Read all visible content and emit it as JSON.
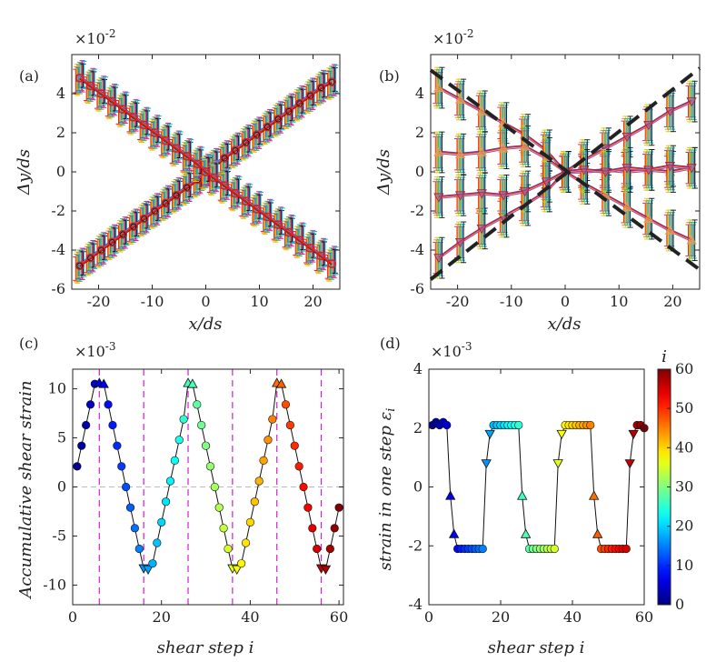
{
  "chart_data": [
    {
      "panel": "(a)",
      "type": "line",
      "multiplier": "×10-2",
      "x_label": "x/ds",
      "y_label": "Δy/ds",
      "xlim": [
        -25,
        25
      ],
      "ylim": [
        -6,
        6
      ],
      "x_ticks": [
        -20,
        -10,
        0,
        10,
        20
      ],
      "y_ticks": [
        -6,
        -4,
        -2,
        0,
        2,
        4
      ],
      "x": [
        -23.5,
        -21.5,
        -19.5,
        -17.5,
        -15.5,
        -13.5,
        -11.5,
        -9.5,
        -7.5,
        -5.5,
        -3.5,
        -1.5,
        0,
        1.5,
        3.5,
        5.5,
        7.5,
        9.5,
        11.5,
        13.5,
        15.5,
        17.5,
        19.5,
        21.5,
        23.5
      ],
      "series": [
        {
          "name": "positive slope",
          "slope": 0.2,
          "values": [
            -4.8,
            -4.4,
            -4.0,
            -3.6,
            -3.2,
            -2.8,
            -2.4,
            -2.0,
            -1.6,
            -1.2,
            -0.8,
            -0.4,
            0.0,
            0.3,
            0.7,
            1.1,
            1.5,
            1.9,
            2.3,
            2.7,
            3.1,
            3.5,
            3.9,
            4.3,
            4.6
          ]
        },
        {
          "name": "negative slope",
          "slope": -0.2,
          "values": [
            4.8,
            4.4,
            4.0,
            3.6,
            3.2,
            2.8,
            2.4,
            2.0,
            1.6,
            1.2,
            0.8,
            0.4,
            0.0,
            -0.3,
            -0.7,
            -1.1,
            -1.5,
            -1.9,
            -2.3,
            -2.7,
            -3.1,
            -3.5,
            -3.9,
            -4.3,
            -4.7
          ]
        }
      ],
      "error_bar_halfwidth": 0.6
    },
    {
      "panel": "(b)",
      "type": "line",
      "multiplier": "×10-2",
      "x_label": "x/ds",
      "y_label": "Δy/ds",
      "xlim": [
        -25,
        25
      ],
      "ylim": [
        -6,
        6
      ],
      "x_ticks": [
        -20,
        -10,
        0,
        10,
        20
      ],
      "y_ticks": [
        -6,
        -4,
        -2,
        0,
        2,
        4
      ],
      "x": [
        -23.5,
        -19.5,
        -15.5,
        -11.5,
        -7.5,
        -3.5,
        0,
        3.5,
        7.5,
        11.5,
        15.5,
        19.5,
        23.5
      ],
      "series": [
        {
          "name": "up-triangle decreasing",
          "marker": "triangle-up",
          "values": [
            4.3,
            3.7,
            3.1,
            2.5,
            1.9,
            1.1,
            0.0,
            -0.6,
            -1.2,
            -1.8,
            -2.4,
            -3.0,
            -3.5
          ]
        },
        {
          "name": "down-triangle increasing",
          "marker": "triangle-down",
          "values": [
            -4.4,
            -3.6,
            -2.9,
            -2.3,
            -1.7,
            -1.0,
            0.0,
            0.6,
            1.2,
            1.8,
            2.4,
            3.1,
            3.6
          ]
        },
        {
          "name": "up-triangle flat",
          "marker": "triangle-up",
          "values": [
            1.0,
            0.9,
            1.0,
            1.2,
            1.3,
            0.7,
            0.0,
            0.0,
            0.1,
            0.0,
            0.1,
            0.0,
            0.2
          ]
        },
        {
          "name": "down-triangle flat",
          "marker": "triangle-down",
          "values": [
            -1.3,
            -1.2,
            -1.1,
            -1.2,
            -1.0,
            -0.5,
            0.0,
            0.1,
            0.0,
            0.2,
            0.1,
            0.3,
            0.2
          ]
        }
      ],
      "dashed_lines": [
        {
          "name": "dashed-upper",
          "x": [
            -25,
            25
          ],
          "y": [
            -5.5,
            5.3
          ]
        },
        {
          "name": "dashed-lower",
          "x": [
            -25,
            25
          ],
          "y": [
            5.2,
            -5.0
          ]
        }
      ]
    },
    {
      "panel": "(c)",
      "type": "scatter",
      "multiplier": "×10-3",
      "x_label": "shear step i",
      "y_label": "Accumulative shear strain",
      "xlim": [
        0,
        61
      ],
      "ylim": [
        -12,
        12
      ],
      "x_ticks": [
        0,
        20,
        40,
        60
      ],
      "y_ticks": [
        -10,
        -5,
        0,
        5,
        10
      ],
      "vlines": [
        6,
        16,
        26,
        36,
        46,
        56
      ],
      "x": [
        1,
        2,
        3,
        4,
        5,
        6,
        7,
        8,
        9,
        10,
        11,
        12,
        13,
        14,
        15,
        16,
        17,
        18,
        19,
        20,
        21,
        22,
        23,
        24,
        25,
        26,
        27,
        28,
        29,
        30,
        31,
        32,
        33,
        34,
        35,
        36,
        37,
        38,
        39,
        40,
        41,
        42,
        43,
        44,
        45,
        46,
        47,
        48,
        49,
        50,
        51,
        52,
        53,
        54,
        55,
        56,
        57,
        58,
        59,
        60
      ],
      "values": [
        2.1,
        4.2,
        6.3,
        8.4,
        10.5,
        10.6,
        10.5,
        8.4,
        6.3,
        4.2,
        2.1,
        0.0,
        -2.1,
        -4.2,
        -6.3,
        -8.3,
        -8.4,
        -7.8,
        -5.7,
        -3.6,
        -1.5,
        0.6,
        2.7,
        4.8,
        6.9,
        10.6,
        10.5,
        8.4,
        6.3,
        4.2,
        2.1,
        0.0,
        -2.1,
        -4.2,
        -6.3,
        -8.3,
        -8.4,
        -7.8,
        -5.7,
        -3.6,
        -1.5,
        0.6,
        2.7,
        4.8,
        6.9,
        10.6,
        10.5,
        8.4,
        6.3,
        4.2,
        2.1,
        0.0,
        -2.1,
        -4.2,
        -6.3,
        -8.3,
        -8.4,
        -6.3,
        -4.2,
        -2.1
      ],
      "markers": "circle; triangle at turning steps"
    },
    {
      "panel": "(d)",
      "type": "scatter",
      "multiplier": "×10-3",
      "x_label": "shear step i",
      "y_label": "strain in one step εi",
      "xlim": [
        0,
        60
      ],
      "ylim": [
        -4,
        4
      ],
      "x_ticks": [
        0,
        20,
        40,
        60
      ],
      "y_ticks": [
        -4,
        -2,
        0,
        2,
        4
      ],
      "x": [
        1,
        2,
        3,
        4,
        5,
        6,
        7,
        8,
        9,
        10,
        11,
        12,
        13,
        14,
        15,
        16,
        17,
        18,
        19,
        20,
        21,
        22,
        23,
        24,
        25,
        26,
        27,
        28,
        29,
        30,
        31,
        32,
        33,
        34,
        35,
        36,
        37,
        38,
        39,
        40,
        41,
        42,
        43,
        44,
        45,
        46,
        47,
        48,
        49,
        50,
        51,
        52,
        53,
        54,
        55,
        56,
        57,
        58,
        59,
        60
      ],
      "values": [
        2.1,
        2.2,
        2.1,
        2.2,
        2.1,
        -0.3,
        -1.6,
        -2.1,
        -2.1,
        -2.1,
        -2.1,
        -2.1,
        -2.1,
        -2.1,
        -2.1,
        0.8,
        1.8,
        2.1,
        2.1,
        2.1,
        2.1,
        2.1,
        2.1,
        2.1,
        2.1,
        -0.3,
        -1.6,
        -2.1,
        -2.1,
        -2.1,
        -2.1,
        -2.1,
        -2.1,
        -2.1,
        -2.1,
        0.8,
        1.8,
        2.1,
        2.1,
        2.1,
        2.1,
        2.1,
        2.1,
        2.1,
        2.1,
        -0.3,
        -1.6,
        -2.1,
        -2.1,
        -2.1,
        -2.1,
        -2.1,
        -2.1,
        -2.1,
        -2.1,
        0.8,
        1.8,
        2.1,
        2.1,
        2.0
      ],
      "colorbar": {
        "label": "i",
        "min": 0,
        "max": 60,
        "ticks": [
          0,
          10,
          20,
          30,
          40,
          50,
          60
        ],
        "colormap": "jet"
      }
    }
  ],
  "colors": {
    "line_black": "#111111",
    "vline_magenta": "#d020d0",
    "zero_line": "#bbbbbb",
    "red_series": "#e41a1c",
    "orange_series": "#e8a050"
  }
}
